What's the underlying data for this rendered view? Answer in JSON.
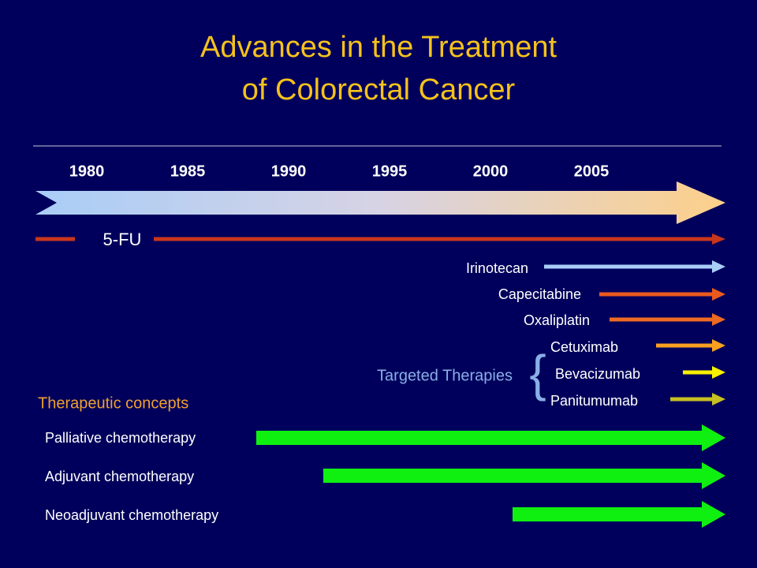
{
  "title": {
    "line1": "Advances in the Treatment",
    "line2": "of Colorectal Cancer"
  },
  "years": [
    "1980",
    "1985",
    "1990",
    "1995",
    "2000",
    "2005"
  ],
  "base_drug": "5-FU",
  "drugs": [
    "Irinotecan",
    "Capecitabine",
    "Oxaliplatin"
  ],
  "targeted": {
    "label": "Targeted Therapies",
    "drugs": [
      "Cetuximab",
      "Bevacizumab",
      "Panitumumab"
    ]
  },
  "concepts": {
    "heading": "Therapeutic concepts",
    "items": [
      "Palliative chemotherapy",
      "Adjuvant chemotherapy",
      "Neoadjuvant chemotherapy"
    ]
  }
}
